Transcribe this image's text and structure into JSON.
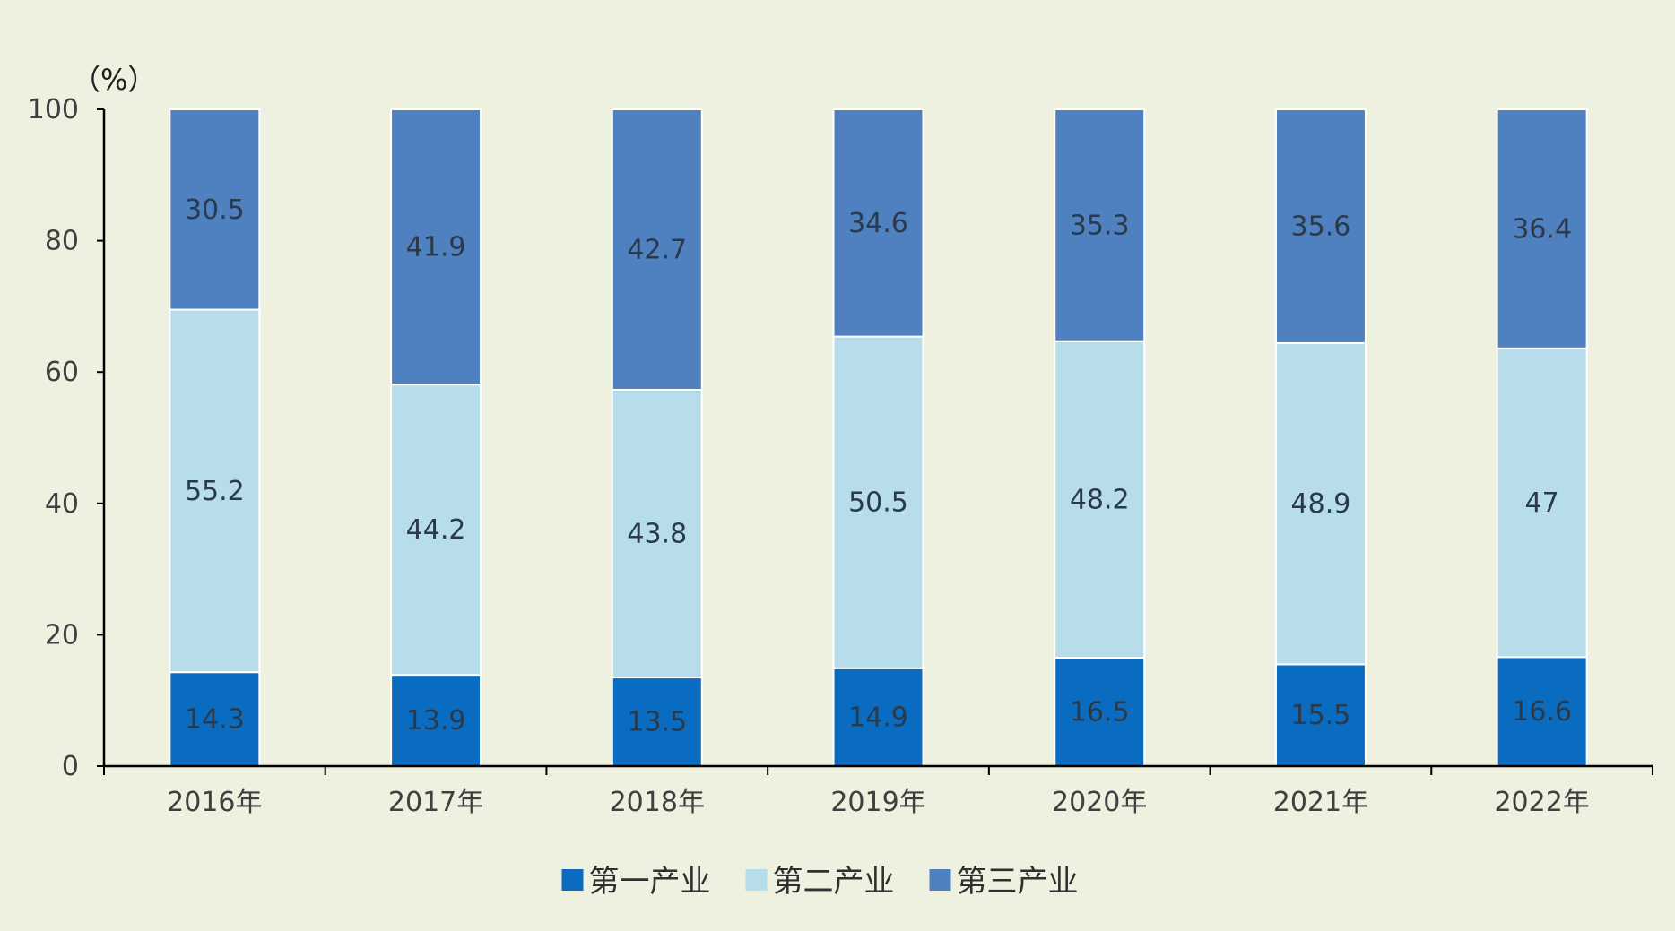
{
  "chart_data": {
    "type": "bar",
    "stacked": true,
    "unit_label": "（%）",
    "categories": [
      "2016年",
      "2017年",
      "2018年",
      "2019年",
      "2020年",
      "2021年",
      "2022年"
    ],
    "series": [
      {
        "name": "第一产业",
        "color": "#0a6cc0",
        "values": [
          14.3,
          13.9,
          13.5,
          14.9,
          16.5,
          15.5,
          16.6
        ]
      },
      {
        "name": "第二产业",
        "color": "#b7dcea",
        "values": [
          55.2,
          44.2,
          43.8,
          50.5,
          48.2,
          48.9,
          47
        ]
      },
      {
        "name": "第三产业",
        "color": "#4f81c0",
        "values": [
          30.5,
          41.9,
          42.7,
          34.6,
          35.3,
          35.6,
          36.4
        ]
      }
    ],
    "ylim": [
      0,
      100
    ],
    "yticks": [
      0,
      20,
      40,
      60,
      80,
      100
    ],
    "grid": false,
    "legend_position": "bottom"
  }
}
